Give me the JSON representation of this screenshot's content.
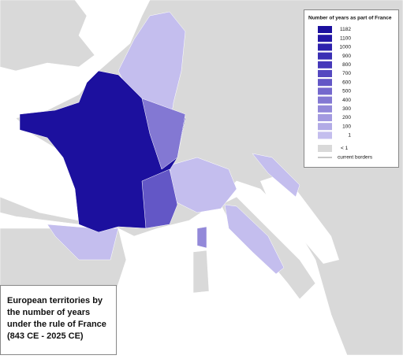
{
  "map": {
    "title": {
      "lines": [
        "European territories by",
        "the number of years",
        "under the rule of France",
        "(843 CE - 2025 CE)"
      ]
    },
    "legend": {
      "title": "Number of years as part of France",
      "items": [
        {
          "label": "1182",
          "color": "#1c109e"
        },
        {
          "label": "1100",
          "color": "#2417a6"
        },
        {
          "label": "1000",
          "color": "#2d21ad"
        },
        {
          "label": "900",
          "color": "#3a2fb4"
        },
        {
          "label": "800",
          "color": "#4639ba"
        },
        {
          "label": "700",
          "color": "#5448c0"
        },
        {
          "label": "600",
          "color": "#6357c6"
        },
        {
          "label": "500",
          "color": "#7468cd"
        },
        {
          "label": "400",
          "color": "#8378d3"
        },
        {
          "label": "300",
          "color": "#9389d9"
        },
        {
          "label": "200",
          "color": "#a39ae0"
        },
        {
          "label": "100",
          "color": "#b2abe6"
        },
        {
          "label": "1",
          "color": "#c4beee"
        },
        {
          "label": "< 1",
          "color": "#d9d9d9"
        }
      ],
      "borders_label": "current borders"
    }
  }
}
